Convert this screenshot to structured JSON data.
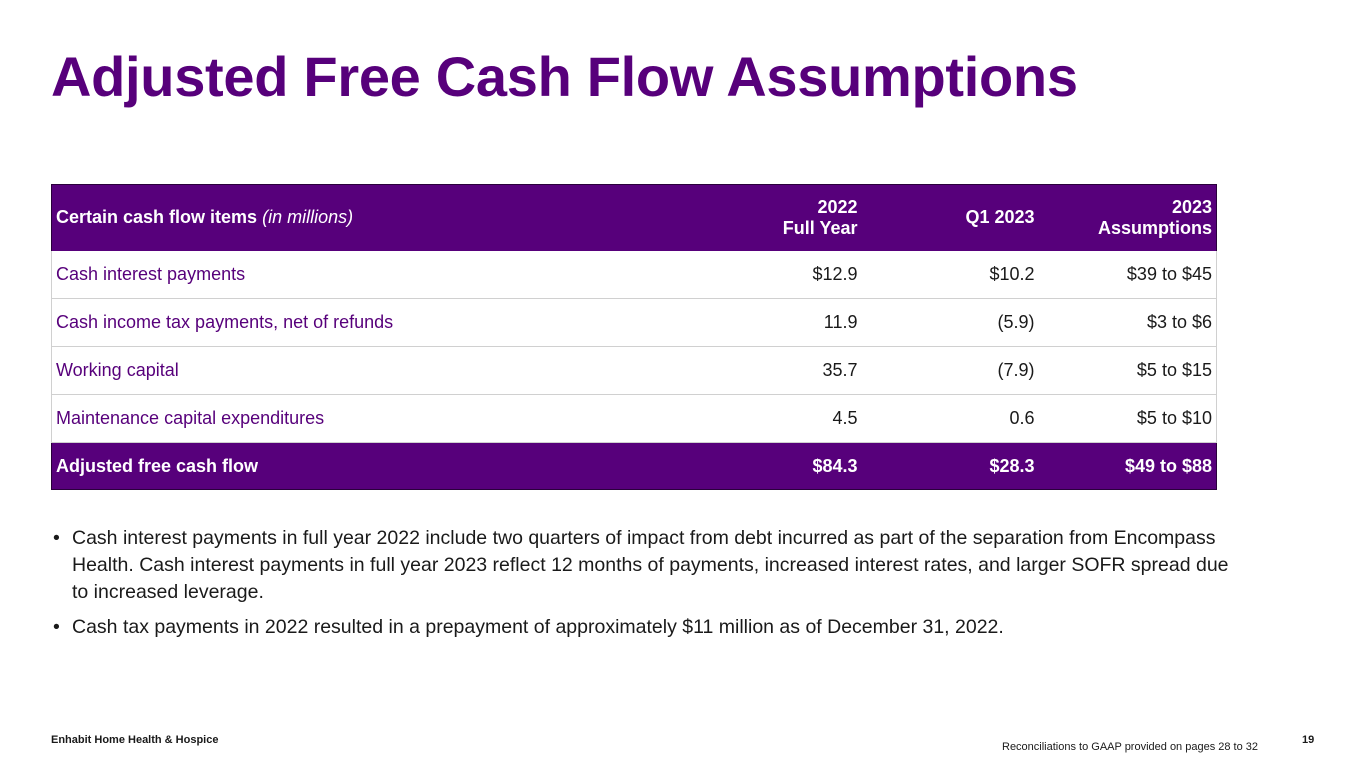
{
  "title": "Adjusted Free Cash Flow Assumptions",
  "table": {
    "header": {
      "label_bold": "Certain cash flow items",
      "label_italic": "(in millions)",
      "col1_line1": "2022",
      "col1_line2": "Full Year",
      "col2": "Q1 2023",
      "col3_line1": "2023",
      "col3_line2": "Assumptions"
    },
    "rows": [
      {
        "label": "Cash interest payments",
        "fy2022": "$12.9",
        "q1_2023": "$10.2",
        "assumptions_2023": "$39 to $45"
      },
      {
        "label": "Cash income tax payments, net of refunds",
        "fy2022": "11.9",
        "q1_2023": "(5.9)",
        "assumptions_2023": "$3 to $6"
      },
      {
        "label": "Working capital",
        "fy2022": "35.7",
        "q1_2023": "(7.9)",
        "assumptions_2023": "$5 to $15"
      },
      {
        "label": "Maintenance capital expenditures",
        "fy2022": "4.5",
        "q1_2023": "0.6",
        "assumptions_2023": "$5 to $10"
      }
    ],
    "total": {
      "label": "Adjusted free cash flow",
      "fy2022": "$84.3",
      "q1_2023": "$28.3",
      "assumptions_2023": "$49 to $88"
    }
  },
  "notes": [
    {
      "bullet": "•",
      "text": "Cash interest payments in full year 2022 include two quarters of impact from debt incurred as part of the separation from Encompass Health. Cash interest payments in full year 2023 reflect 12 months of payments, increased interest rates, and larger SOFR spread due to increased leverage."
    },
    {
      "bullet": "•",
      "text": "Cash tax payments in 2022 resulted in a prepayment of approximately $11 million as of December 31, 2022."
    }
  ],
  "footer": {
    "company": "Enhabit Home Health & Hospice",
    "reconciliation_note": "Reconciliations to GAAP provided on pages 28 to 32",
    "page_number": "19"
  },
  "colors": {
    "brand_purple": "#57007b",
    "text": "#1a1a1a",
    "divider": "#d0d0d0"
  }
}
